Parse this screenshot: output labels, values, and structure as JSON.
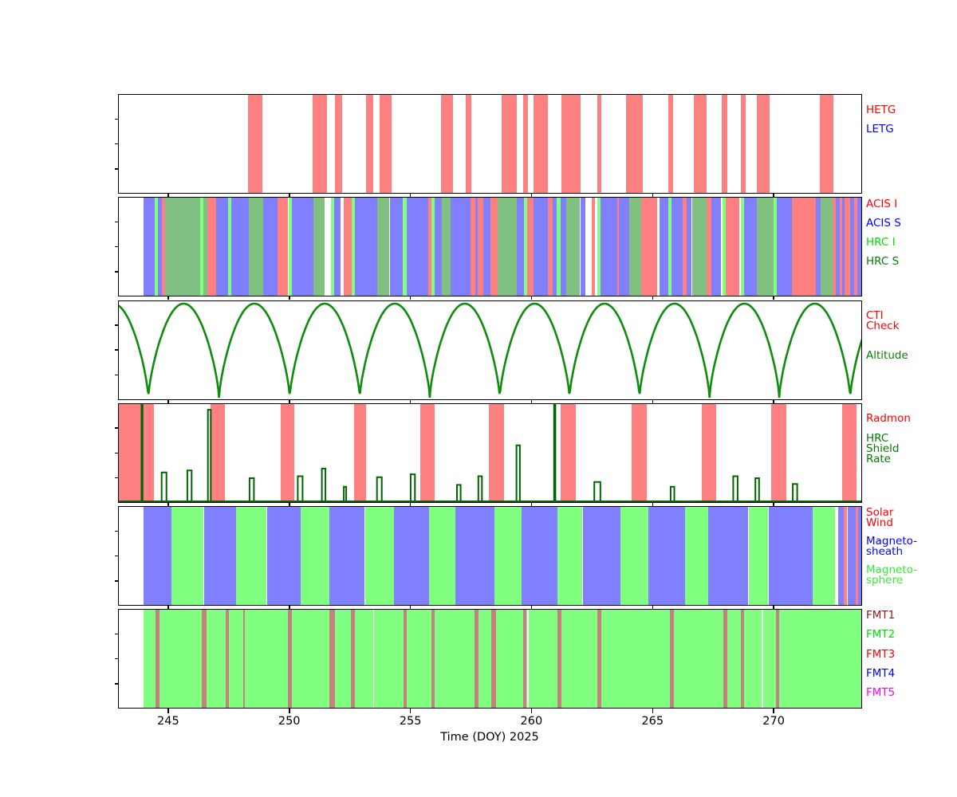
{
  "figure": {
    "xlabel": "Time (DOY) 2025",
    "x_ticks": [
      245,
      250,
      255,
      260,
      265,
      270
    ],
    "x_domain": [
      242.93,
      273.65
    ],
    "background": "#ffffff"
  },
  "colors": {
    "band_red": "#ff8080",
    "band_blue": "#8080ff",
    "band_green": "#80ff80",
    "band_sage": "#80c080",
    "band_fmt1": "#c58080",
    "white": "#ffffff",
    "altitude_line": "#0e8c0e",
    "shield_line": "#006400",
    "axis": "#000000"
  },
  "chart_data": [
    {
      "panel": "gratings",
      "type": "bar",
      "legend": [
        {
          "label": "HETG",
          "color": "#ff0000",
          "dy": 14
        },
        {
          "label": "LETG",
          "color": "#0000ff",
          "dy": 38
        }
      ],
      "hetg_intervals_doy": [
        [
          248.29,
          248.88
        ],
        [
          250.97,
          251.55
        ],
        [
          251.88,
          252.18
        ],
        [
          253.17,
          253.48
        ],
        [
          253.72,
          254.21
        ],
        [
          256.27,
          256.77
        ],
        [
          257.29,
          257.51
        ],
        [
          258.76,
          259.4
        ],
        [
          259.67,
          259.87
        ],
        [
          260.07,
          260.67
        ],
        [
          261.25,
          262.02
        ],
        [
          262.71,
          262.9
        ],
        [
          263.89,
          264.59
        ],
        [
          265.64,
          265.86
        ],
        [
          266.69,
          267.24
        ],
        [
          267.86,
          268.09
        ],
        [
          268.64,
          268.83
        ],
        [
          269.29,
          269.84
        ],
        [
          271.9,
          272.45
        ]
      ],
      "letg_intervals_doy": []
    },
    {
      "panel": "instruments",
      "type": "bar",
      "legend": [
        {
          "label": "ACIS I",
          "color": "#ff0000",
          "dy": 3
        },
        {
          "label": "ACIS S",
          "color": "#0000ff",
          "dy": 27
        },
        {
          "label": "HRC I",
          "color": "#00dd00",
          "dy": 51
        },
        {
          "label": "HRC S",
          "color": "#087808",
          "dy": 75
        }
      ],
      "segment_colors": {
        "ACIS_I": "#ff8080",
        "ACIS_S": "#8080ff",
        "HRC_I": "#80ff80",
        "HRC_S": "#80c080",
        "GAP": "#ffffff"
      },
      "segments": [
        [
          242.93,
          243.98,
          "GAP"
        ],
        [
          243.98,
          244.45,
          "ACIS_S"
        ],
        [
          244.45,
          244.58,
          "HRC_I"
        ],
        [
          244.58,
          244.74,
          "ACIS_S"
        ],
        [
          244.74,
          244.88,
          "ACIS_I"
        ],
        [
          244.88,
          246.33,
          "HRC_S"
        ],
        [
          246.33,
          246.46,
          "HRC_I"
        ],
        [
          246.46,
          246.62,
          "HRC_S"
        ],
        [
          246.62,
          246.98,
          "ACIS_I"
        ],
        [
          246.98,
          247.47,
          "ACIS_S"
        ],
        [
          247.47,
          247.6,
          "HRC_I"
        ],
        [
          247.6,
          248.34,
          "ACIS_S"
        ],
        [
          248.34,
          248.92,
          "HRC_S"
        ],
        [
          248.92,
          249.52,
          "ACIS_S"
        ],
        [
          249.52,
          249.96,
          "ACIS_I"
        ],
        [
          249.96,
          250.1,
          "HRC_I"
        ],
        [
          250.1,
          251.01,
          "ACIS_S"
        ],
        [
          251.01,
          251.47,
          "HRC_S"
        ],
        [
          251.47,
          251.73,
          "GAP"
        ],
        [
          251.73,
          251.86,
          "HRC_I"
        ],
        [
          251.86,
          252.13,
          "ACIS_S"
        ],
        [
          252.13,
          252.24,
          "GAP"
        ],
        [
          252.24,
          252.57,
          "ACIS_I"
        ],
        [
          252.57,
          252.71,
          "HRC_I"
        ],
        [
          252.71,
          253.62,
          "ACIS_S"
        ],
        [
          253.62,
          254.14,
          "HRC_S"
        ],
        [
          254.14,
          254.69,
          "ACIS_S"
        ],
        [
          254.69,
          254.86,
          "HRC_I"
        ],
        [
          254.86,
          255.74,
          "ACIS_S"
        ],
        [
          255.74,
          255.88,
          "ACIS_I"
        ],
        [
          255.88,
          256.01,
          "HRC_I"
        ],
        [
          256.01,
          256.29,
          "ACIS_S"
        ],
        [
          256.29,
          256.67,
          "HRC_S"
        ],
        [
          256.67,
          257.47,
          "ACIS_S"
        ],
        [
          257.47,
          257.68,
          "ACIS_I"
        ],
        [
          257.68,
          257.77,
          "ACIS_S"
        ],
        [
          257.77,
          258.01,
          "ACIS_I"
        ],
        [
          258.01,
          258.32,
          "ACIS_S"
        ],
        [
          258.32,
          258.6,
          "ACIS_I"
        ],
        [
          258.6,
          259.4,
          "HRC_S"
        ],
        [
          259.4,
          259.7,
          "ACIS_S"
        ],
        [
          259.7,
          259.83,
          "HRC_I"
        ],
        [
          259.83,
          260.09,
          "ACIS_I"
        ],
        [
          260.09,
          260.67,
          "ACIS_S"
        ],
        [
          260.67,
          260.86,
          "ACIS_I"
        ],
        [
          260.86,
          261.05,
          "ACIS_S"
        ],
        [
          261.05,
          261.19,
          "HRC_I"
        ],
        [
          261.19,
          261.43,
          "ACIS_S"
        ],
        [
          261.43,
          262.01,
          "HRC_S"
        ],
        [
          262.01,
          262.23,
          "ACIS_S"
        ],
        [
          262.23,
          262.48,
          "GAP"
        ],
        [
          262.48,
          262.63,
          "ACIS_I"
        ],
        [
          262.63,
          262.72,
          "GAP"
        ],
        [
          262.72,
          262.85,
          "HRC_I"
        ],
        [
          262.85,
          263.55,
          "ACIS_S"
        ],
        [
          263.55,
          263.62,
          "ACIS_I"
        ],
        [
          263.62,
          264.04,
          "ACIS_S"
        ],
        [
          264.04,
          264.53,
          "HRC_S"
        ],
        [
          264.53,
          265.19,
          "ACIS_I"
        ],
        [
          265.19,
          265.3,
          "GAP"
        ],
        [
          265.3,
          265.66,
          "ACIS_S"
        ],
        [
          265.66,
          265.79,
          "HRC_I"
        ],
        [
          265.79,
          266.23,
          "ACIS_S"
        ],
        [
          266.23,
          266.4,
          "ACIS_I"
        ],
        [
          266.4,
          266.62,
          "ACIS_S"
        ],
        [
          266.62,
          267.22,
          "HRC_S"
        ],
        [
          267.22,
          267.44,
          "ACIS_I"
        ],
        [
          267.44,
          267.83,
          "ACIS_S"
        ],
        [
          267.83,
          267.9,
          "GAP"
        ],
        [
          267.9,
          268.01,
          "HRC_I"
        ],
        [
          268.01,
          268.59,
          "ACIS_I"
        ],
        [
          268.59,
          268.65,
          "GAP"
        ],
        [
          268.65,
          268.78,
          "HRC_I"
        ],
        [
          268.78,
          269.31,
          "ACIS_S"
        ],
        [
          269.31,
          270.0,
          "HRC_S"
        ],
        [
          270.0,
          270.13,
          "HRC_I"
        ],
        [
          270.13,
          270.74,
          "ACIS_S"
        ],
        [
          270.74,
          271.73,
          "ACIS_I"
        ],
        [
          271.73,
          271.95,
          "ACIS_S"
        ],
        [
          271.95,
          272.44,
          "HRC_S"
        ],
        [
          272.44,
          272.55,
          "ACIS_I"
        ],
        [
          272.55,
          272.72,
          "ACIS_S"
        ],
        [
          272.72,
          272.83,
          "ACIS_I"
        ],
        [
          272.83,
          272.94,
          "ACIS_S"
        ],
        [
          272.94,
          273.16,
          "ACIS_I"
        ],
        [
          273.16,
          273.32,
          "ACIS_S"
        ],
        [
          273.32,
          273.46,
          "ACIS_I"
        ],
        [
          273.46,
          273.65,
          "ACIS_S"
        ]
      ]
    },
    {
      "panel": "altitude",
      "type": "line",
      "legend": [
        {
          "label": "CTI\nCheck",
          "color": "#ff0000",
          "dy": 13
        },
        {
          "label": "Altitude",
          "color": "#0a7e0a",
          "dy": 63
        }
      ],
      "perigee_cusps_doy": [
        241.28,
        244.18,
        247.1,
        250.02,
        252.91,
        255.8,
        258.69,
        261.57,
        264.46,
        267.35,
        270.23,
        273.16,
        276.06
      ]
    },
    {
      "panel": "radmon",
      "type": "bar+line",
      "legend": [
        {
          "label": "Radmon",
          "color": "#ff0000",
          "dy": 13
        },
        {
          "label": "HRC\nShield\nRate",
          "color": "#067806",
          "dy": 38
        }
      ],
      "radmon_disabled_intervals_doy": [
        [
          242.93,
          244.42
        ],
        [
          246.76,
          247.33
        ],
        [
          249.66,
          250.22
        ],
        [
          252.67,
          253.18
        ],
        [
          255.42,
          256.01
        ],
        [
          258.23,
          258.87
        ],
        [
          261.21,
          261.82
        ],
        [
          264.14,
          264.75
        ],
        [
          267.03,
          267.64
        ],
        [
          269.91,
          270.52
        ],
        [
          272.83,
          273.43
        ]
      ],
      "shield_rate_spikes": [
        {
          "doy": 243.92,
          "height": 1.0,
          "width": 0.04
        },
        {
          "doy": 244.83,
          "height": 0.3,
          "width": 0.2
        },
        {
          "doy": 245.88,
          "height": 0.32,
          "width": 0.18
        },
        {
          "doy": 246.7,
          "height": 0.95,
          "width": 0.12
        },
        {
          "doy": 248.45,
          "height": 0.24,
          "width": 0.18
        },
        {
          "doy": 250.45,
          "height": 0.26,
          "width": 0.2
        },
        {
          "doy": 251.42,
          "height": 0.34,
          "width": 0.15
        },
        {
          "doy": 252.3,
          "height": 0.15,
          "width": 0.1
        },
        {
          "doy": 253.72,
          "height": 0.25,
          "width": 0.2
        },
        {
          "doy": 255.1,
          "height": 0.28,
          "width": 0.18
        },
        {
          "doy": 257.0,
          "height": 0.17,
          "width": 0.15
        },
        {
          "doy": 257.88,
          "height": 0.26,
          "width": 0.15
        },
        {
          "doy": 259.45,
          "height": 0.58,
          "width": 0.14
        },
        {
          "doy": 260.96,
          "height": 1.0,
          "width": 0.05
        },
        {
          "doy": 262.72,
          "height": 0.2,
          "width": 0.25
        },
        {
          "doy": 265.82,
          "height": 0.15,
          "width": 0.15
        },
        {
          "doy": 268.42,
          "height": 0.26,
          "width": 0.18
        },
        {
          "doy": 269.32,
          "height": 0.24,
          "width": 0.15
        },
        {
          "doy": 270.88,
          "height": 0.18,
          "width": 0.18
        }
      ]
    },
    {
      "panel": "solar-wind-regions",
      "type": "bar",
      "legend": [
        {
          "label": "Solar\nWind",
          "color": "#ff0000",
          "dy": 2
        },
        {
          "label": "Magneto-\nsheath",
          "color": "#0000ff",
          "dy": 38
        },
        {
          "label": "Magneto-\nsphere",
          "color": "#33ee33",
          "dy": 74
        }
      ],
      "segment_colors": {
        "SOLAR_WIND": "#ff8080",
        "MAGNETOSHEATH": "#8080ff",
        "MAGNETOSPHERE": "#80ff80",
        "GAP": "#ffffff"
      },
      "segments": [
        [
          242.93,
          243.97,
          "GAP"
        ],
        [
          243.97,
          245.13,
          "MAGNETOSHEATH"
        ],
        [
          245.13,
          246.47,
          "MAGNETOSPHERE"
        ],
        [
          246.47,
          247.8,
          "MAGNETOSHEATH"
        ],
        [
          247.8,
          249.07,
          "MAGNETOSPHERE"
        ],
        [
          249.07,
          250.46,
          "MAGNETOSHEATH"
        ],
        [
          250.46,
          251.67,
          "MAGNETOSPHERE"
        ],
        [
          251.67,
          253.1,
          "MAGNETOSHEATH"
        ],
        [
          253.1,
          253.15,
          "GAP"
        ],
        [
          253.15,
          254.31,
          "MAGNETOSPHERE"
        ],
        [
          254.31,
          255.77,
          "MAGNETOSHEATH"
        ],
        [
          255.77,
          256.87,
          "MAGNETOSPHERE"
        ],
        [
          256.87,
          258.46,
          "MAGNETOSHEATH"
        ],
        [
          258.46,
          259.58,
          "MAGNETOSPHERE"
        ],
        [
          259.58,
          261.07,
          "MAGNETOSHEATH"
        ],
        [
          261.07,
          262.11,
          "MAGNETOSPHERE"
        ],
        [
          262.11,
          263.68,
          "MAGNETOSHEATH"
        ],
        [
          263.68,
          264.83,
          "MAGNETOSPHERE"
        ],
        [
          264.83,
          266.34,
          "MAGNETOSHEATH"
        ],
        [
          266.34,
          267.31,
          "MAGNETOSPHERE"
        ],
        [
          267.31,
          268.96,
          "MAGNETOSHEATH"
        ],
        [
          268.96,
          269.78,
          "MAGNETOSPHERE"
        ],
        [
          269.78,
          271.62,
          "MAGNETOSHEATH"
        ],
        [
          271.62,
          272.55,
          "MAGNETOSPHERE"
        ],
        [
          272.55,
          272.66,
          "GAP"
        ],
        [
          272.66,
          272.9,
          "MAGNETOSHEATH"
        ],
        [
          272.9,
          273.04,
          "SOLAR_WIND"
        ],
        [
          273.04,
          273.4,
          "MAGNETOSHEATH"
        ],
        [
          273.4,
          273.49,
          "SOLAR_WIND"
        ],
        [
          273.49,
          273.65,
          "MAGNETOSHEATH"
        ]
      ]
    },
    {
      "panel": "fmt",
      "type": "bar",
      "legend": [
        {
          "label": "FMT1",
          "color": "#8b1a1a",
          "dy": 2
        },
        {
          "label": "FMT2",
          "color": "#00dd00",
          "dy": 26
        },
        {
          "label": "FMT3",
          "color": "#ff0000",
          "dy": 51
        },
        {
          "label": "FMT4",
          "color": "#0000ff",
          "dy": 75
        },
        {
          "label": "FMT5",
          "color": "#ff00ff",
          "dy": 99
        }
      ],
      "segment_colors": {
        "FMT1": "#c58080",
        "FMT2": "#80ff80"
      },
      "fmt2_base_interval_doy": [
        243.97,
        273.65
      ],
      "fmt1_stripes_doy": [
        [
          244.47,
          244.64
        ],
        [
          246.4,
          246.57
        ],
        [
          247.36,
          247.52
        ],
        [
          248.1,
          248.18
        ],
        [
          249.94,
          250.1
        ],
        [
          251.67,
          251.89
        ],
        [
          252.55,
          252.71
        ],
        [
          254.7,
          254.86
        ],
        [
          255.88,
          255.99
        ],
        [
          257.64,
          257.8
        ],
        [
          258.35,
          258.54
        ],
        [
          259.67,
          259.8
        ],
        [
          261.07,
          261.23
        ],
        [
          262.72,
          262.89
        ],
        [
          265.72,
          265.88
        ],
        [
          267.92,
          268.09
        ],
        [
          268.66,
          268.79
        ],
        [
          270.08,
          270.24
        ]
      ],
      "white_gap_days": [
        253.45,
        259.82,
        269.51
      ]
    }
  ]
}
